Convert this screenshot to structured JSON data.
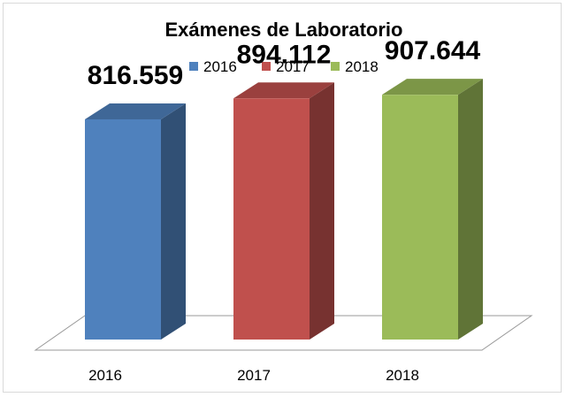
{
  "chart_data": {
    "type": "bar",
    "style": "3d-column",
    "title": "Exámenes de Laboratorio",
    "categories": [
      "2016",
      "2017",
      "2018"
    ],
    "series": [
      {
        "name": "2016",
        "values": [
          816559,
          null,
          null
        ],
        "color": "#4f81bd"
      },
      {
        "name": "2017",
        "values": [
          null,
          894112,
          null
        ],
        "color": "#c0504d"
      },
      {
        "name": "2018",
        "values": [
          null,
          null,
          907644
        ],
        "color": "#9bbb59"
      }
    ],
    "data_labels": [
      "816.559",
      "894.112",
      "907.644"
    ],
    "legend": {
      "position": "top",
      "entries": [
        "2016",
        "2017",
        "2018"
      ]
    },
    "xlabel": "",
    "ylabel": "",
    "grid": false,
    "axis_visible": false,
    "ylim": [
      0,
      1000000
    ]
  }
}
